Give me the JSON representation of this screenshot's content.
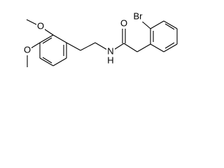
{
  "atoms": [
    {
      "label": "O"
    },
    {
      "label": "O"
    },
    {
      "label": "N"
    },
    {
      "label": "H"
    },
    {
      "label": "O"
    },
    {
      "label": "Br"
    }
  ]
}
